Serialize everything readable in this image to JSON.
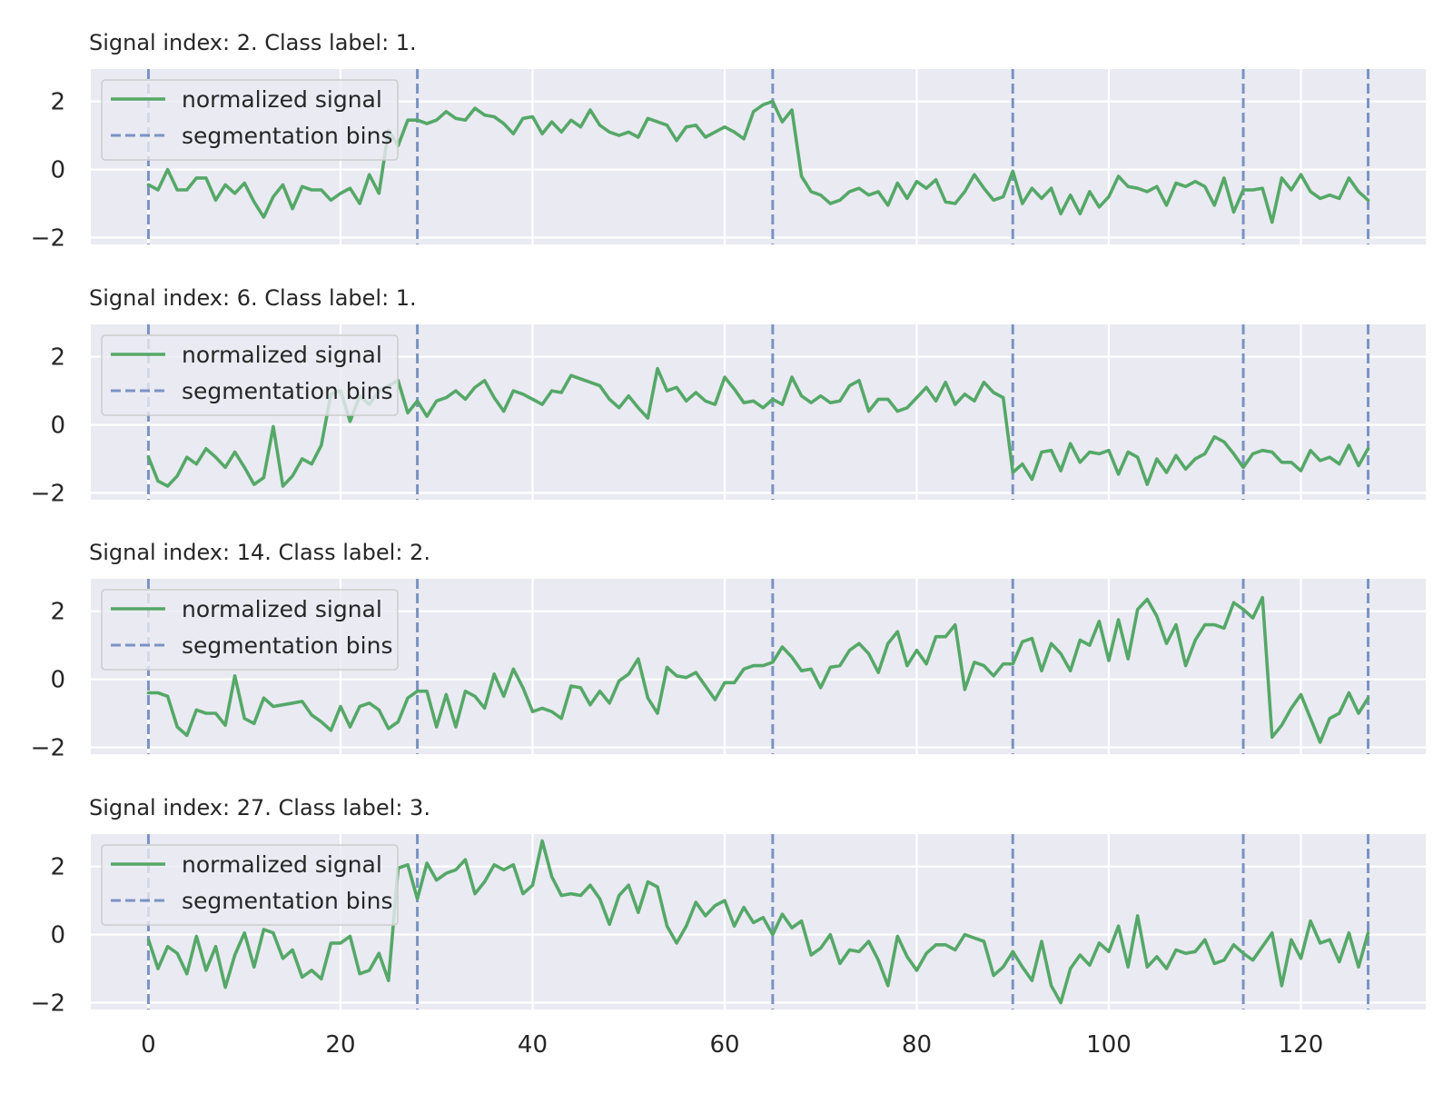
{
  "chart_data": [
    {
      "type": "line",
      "title": "Signal index: 2. Class label: 1.",
      "series": [
        {
          "name": "normalized signal",
          "color": "#55a868",
          "values": [
            -0.45,
            -0.6,
            0.0,
            -0.6,
            -0.6,
            -0.25,
            -0.25,
            -0.9,
            -0.45,
            -0.7,
            -0.4,
            -0.95,
            -1.4,
            -0.8,
            -0.45,
            -1.15,
            -0.5,
            -0.6,
            -0.6,
            -0.9,
            -0.7,
            -0.55,
            -1.0,
            -0.15,
            -0.7,
            1.15,
            0.7,
            1.45,
            1.45,
            1.35,
            1.45,
            1.7,
            1.5,
            1.45,
            1.8,
            1.6,
            1.55,
            1.35,
            1.05,
            1.5,
            1.55,
            1.05,
            1.4,
            1.1,
            1.45,
            1.25,
            1.75,
            1.3,
            1.1,
            1.0,
            1.1,
            0.95,
            1.5,
            1.4,
            1.3,
            0.85,
            1.25,
            1.3,
            0.95,
            1.1,
            1.25,
            1.1,
            0.9,
            1.7,
            1.9,
            2.0,
            1.4,
            1.75,
            -0.2,
            -0.65,
            -0.75,
            -1.0,
            -0.9,
            -0.65,
            -0.55,
            -0.75,
            -0.65,
            -1.05,
            -0.4,
            -0.85,
            -0.35,
            -0.55,
            -0.3,
            -0.95,
            -1.0,
            -0.65,
            -0.15,
            -0.55,
            -0.9,
            -0.8,
            -0.05,
            -1.0,
            -0.55,
            -0.85,
            -0.55,
            -1.3,
            -0.75,
            -1.3,
            -0.65,
            -1.1,
            -0.8,
            -0.2,
            -0.5,
            -0.55,
            -0.65,
            -0.5,
            -1.05,
            -0.4,
            -0.5,
            -0.35,
            -0.5,
            -1.05,
            -0.25,
            -1.25,
            -0.6,
            -0.6,
            -0.55,
            -1.55,
            -0.25,
            -0.6,
            -0.15,
            -0.65,
            -0.85,
            -0.75,
            -0.85,
            -0.25,
            -0.65,
            -0.9
          ]
        },
        {
          "name": "segmentation bins",
          "color": "#7a93c3",
          "x": [
            0,
            28,
            65,
            90,
            114,
            127
          ]
        }
      ]
    },
    {
      "type": "line",
      "title": "Signal index: 6. Class label: 1.",
      "series": [
        {
          "name": "normalized signal",
          "color": "#55a868",
          "values": [
            -0.95,
            -1.65,
            -1.8,
            -1.5,
            -0.95,
            -1.15,
            -0.7,
            -0.95,
            -1.25,
            -0.8,
            -1.25,
            -1.75,
            -1.55,
            -0.05,
            -1.8,
            -1.5,
            -1.0,
            -1.15,
            -0.6,
            0.9,
            1.0,
            0.1,
            0.85,
            0.6,
            1.0,
            1.15,
            1.3,
            0.35,
            0.7,
            0.25,
            0.7,
            0.8,
            1.0,
            0.75,
            1.1,
            1.3,
            0.8,
            0.4,
            1.0,
            0.9,
            0.75,
            0.6,
            1.0,
            0.95,
            1.45,
            1.35,
            1.25,
            1.15,
            0.75,
            0.5,
            0.85,
            0.5,
            0.2,
            1.65,
            1.0,
            1.1,
            0.7,
            0.95,
            0.7,
            0.6,
            1.4,
            1.05,
            0.65,
            0.7,
            0.5,
            0.75,
            0.6,
            1.4,
            0.85,
            0.65,
            0.85,
            0.65,
            0.7,
            1.15,
            1.3,
            0.4,
            0.75,
            0.75,
            0.4,
            0.5,
            0.8,
            1.1,
            0.7,
            1.25,
            0.6,
            0.9,
            0.7,
            1.25,
            0.95,
            0.8,
            -1.4,
            -1.15,
            -1.6,
            -0.8,
            -0.75,
            -1.35,
            -0.55,
            -1.1,
            -0.8,
            -0.85,
            -0.75,
            -1.45,
            -0.8,
            -0.95,
            -1.75,
            -1.0,
            -1.4,
            -0.9,
            -1.3,
            -1.0,
            -0.85,
            -0.35,
            -0.5,
            -0.85,
            -1.25,
            -0.85,
            -0.75,
            -0.8,
            -1.1,
            -1.1,
            -1.35,
            -0.75,
            -1.05,
            -0.95,
            -1.15,
            -0.6,
            -1.2,
            -0.7
          ]
        },
        {
          "name": "segmentation bins",
          "color": "#7a93c3",
          "x": [
            0,
            28,
            65,
            90,
            114,
            127
          ]
        }
      ]
    },
    {
      "type": "line",
      "title": "Signal index: 14. Class label: 2.",
      "series": [
        {
          "name": "normalized signal",
          "color": "#55a868",
          "values": [
            -0.4,
            -0.4,
            -0.5,
            -1.4,
            -1.65,
            -0.9,
            -1.0,
            -1.0,
            -1.35,
            0.1,
            -1.15,
            -1.3,
            -0.55,
            -0.8,
            -0.75,
            -0.7,
            -0.65,
            -1.05,
            -1.25,
            -1.5,
            -0.8,
            -1.4,
            -0.8,
            -0.7,
            -0.9,
            -1.45,
            -1.25,
            -0.55,
            -0.35,
            -0.35,
            -1.4,
            -0.45,
            -1.4,
            -0.35,
            -0.5,
            -0.85,
            0.15,
            -0.5,
            0.3,
            -0.25,
            -0.95,
            -0.85,
            -0.95,
            -1.15,
            -0.2,
            -0.25,
            -0.75,
            -0.35,
            -0.7,
            -0.05,
            0.15,
            0.6,
            -0.55,
            -1.0,
            0.35,
            0.1,
            0.05,
            0.2,
            -0.2,
            -0.6,
            -0.1,
            -0.1,
            0.3,
            0.4,
            0.4,
            0.5,
            0.95,
            0.65,
            0.25,
            0.3,
            -0.25,
            0.35,
            0.4,
            0.85,
            1.05,
            0.75,
            0.2,
            1.05,
            1.4,
            0.4,
            0.85,
            0.45,
            1.25,
            1.25,
            1.6,
            -0.3,
            0.5,
            0.4,
            0.1,
            0.45,
            0.45,
            1.1,
            1.2,
            0.25,
            1.05,
            0.75,
            0.25,
            1.15,
            1.0,
            1.7,
            0.55,
            1.75,
            0.6,
            2.05,
            2.35,
            1.85,
            1.05,
            1.6,
            0.4,
            1.15,
            1.6,
            1.6,
            1.5,
            2.25,
            2.05,
            1.8,
            2.4,
            -1.7,
            -1.35,
            -0.85,
            -0.45,
            -1.15,
            -1.85,
            -1.15,
            -1.0,
            -0.4,
            -1.0,
            -0.55
          ]
        },
        {
          "name": "segmentation bins",
          "color": "#7a93c3",
          "x": [
            0,
            28,
            65,
            90,
            114,
            127
          ]
        }
      ]
    },
    {
      "type": "line",
      "title": "Signal index: 27. Class label: 3.",
      "series": [
        {
          "name": "normalized signal",
          "color": "#55a868",
          "values": [
            -0.15,
            -1.0,
            -0.35,
            -0.55,
            -1.15,
            -0.05,
            -1.05,
            -0.35,
            -1.55,
            -0.6,
            0.05,
            -0.95,
            0.15,
            0.05,
            -0.7,
            -0.45,
            -1.25,
            -1.05,
            -1.3,
            -0.25,
            -0.25,
            -0.05,
            -1.15,
            -1.05,
            -0.55,
            -1.35,
            1.95,
            2.05,
            1.05,
            2.1,
            1.6,
            1.8,
            1.9,
            2.2,
            1.2,
            1.55,
            2.05,
            1.9,
            2.05,
            1.2,
            1.45,
            2.75,
            1.7,
            1.15,
            1.2,
            1.15,
            1.45,
            1.05,
            0.3,
            1.15,
            1.45,
            0.65,
            1.55,
            1.4,
            0.25,
            -0.25,
            0.25,
            0.95,
            0.55,
            0.85,
            1.0,
            0.25,
            0.8,
            0.35,
            0.5,
            0.0,
            0.6,
            0.2,
            0.4,
            -0.6,
            -0.4,
            0.0,
            -0.85,
            -0.45,
            -0.5,
            -0.2,
            -0.75,
            -1.5,
            -0.05,
            -0.65,
            -1.05,
            -0.55,
            -0.3,
            -0.3,
            -0.45,
            0.0,
            -0.1,
            -0.2,
            -1.2,
            -0.95,
            -0.5,
            -0.95,
            -1.35,
            -0.2,
            -1.5,
            -2.0,
            -1.0,
            -0.6,
            -0.9,
            -0.25,
            -0.5,
            0.25,
            -0.95,
            0.55,
            -0.95,
            -0.65,
            -1.0,
            -0.45,
            -0.55,
            -0.5,
            -0.15,
            -0.85,
            -0.75,
            -0.3,
            -0.55,
            -0.75,
            -0.35,
            0.05,
            -1.5,
            -0.15,
            -0.7,
            0.4,
            -0.25,
            -0.15,
            -0.8,
            0.05,
            -0.95,
            0.05
          ]
        },
        {
          "name": "segmentation bins",
          "color": "#7a93c3",
          "x": [
            0,
            28,
            65,
            90,
            114,
            127
          ]
        }
      ]
    }
  ],
  "axes": {
    "xlim": [
      -6,
      133
    ],
    "ylim": [
      -2.2,
      2.95
    ],
    "x_ticks": [
      0,
      20,
      40,
      60,
      80,
      100,
      120
    ],
    "x_tick_labels": [
      "0",
      "20",
      "40",
      "60",
      "80",
      "100",
      "120"
    ],
    "y_ticks": [
      2,
      0,
      -2
    ],
    "y_tick_labels": [
      "2",
      "0",
      "−2"
    ],
    "grid": true,
    "legend_placement": "upper left",
    "background": "#eaeaf2",
    "grid_color": "#ffffff"
  }
}
